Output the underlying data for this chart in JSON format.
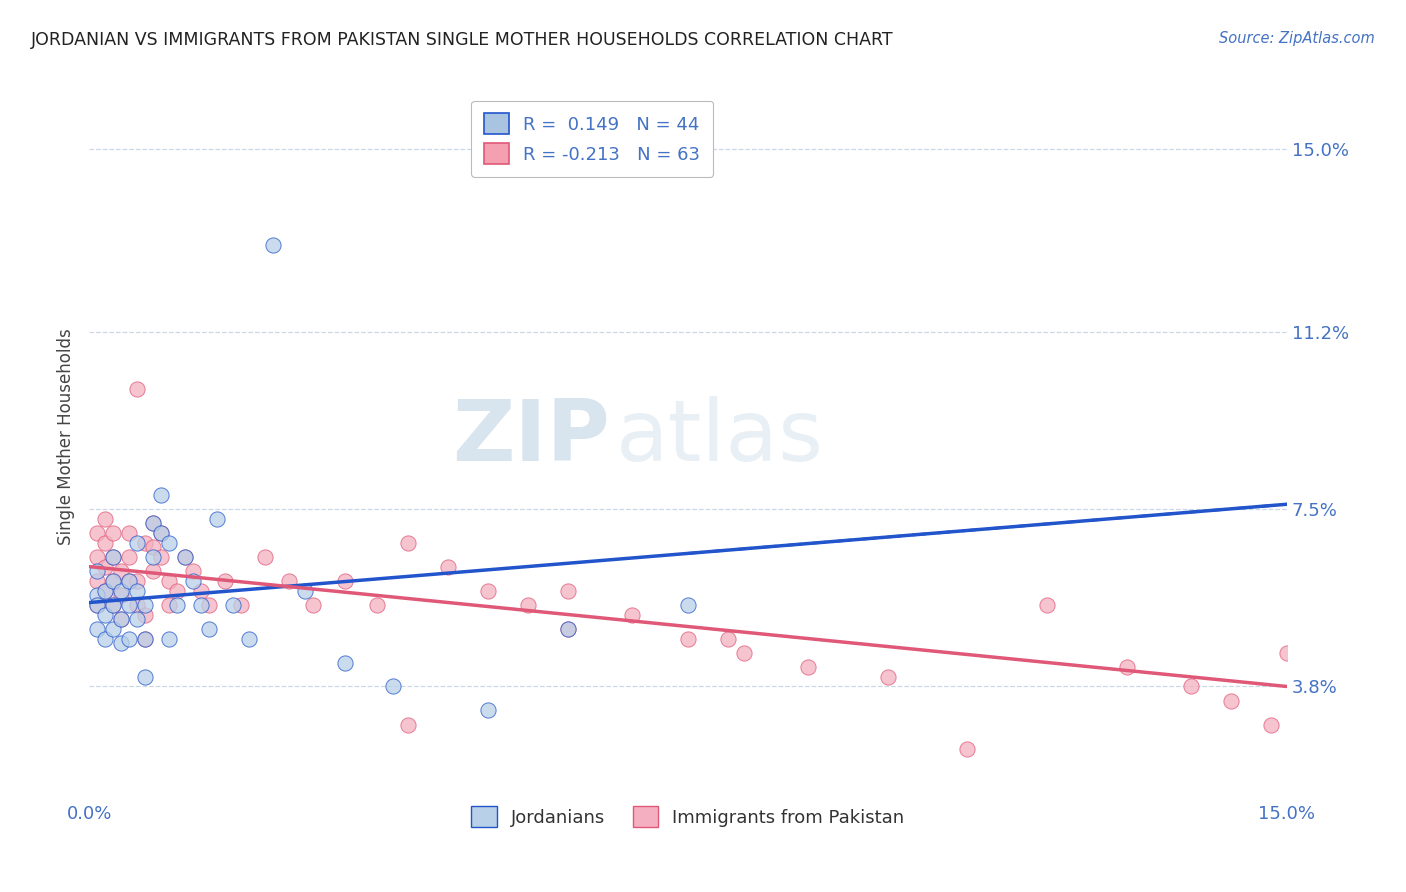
{
  "title": "JORDANIAN VS IMMIGRANTS FROM PAKISTAN SINGLE MOTHER HOUSEHOLDS CORRELATION CHART",
  "source": "Source: ZipAtlas.com",
  "ylabel": "Single Mother Households",
  "right_y_ticks": [
    0.038,
    0.075,
    0.112,
    0.15
  ],
  "right_y_tick_labels": [
    "3.8%",
    "7.5%",
    "11.2%",
    "15.0%"
  ],
  "xlim": [
    0.0,
    0.15
  ],
  "ylim": [
    0.015,
    0.165
  ],
  "legend_label_1": "R =  0.149   N = 44",
  "legend_label_2": "R = -0.213   N = 63",
  "legend_color_1": "#a8c4e0",
  "legend_color_2": "#f4a0b0",
  "watermark_zip": "ZIP",
  "watermark_atlas": "atlas",
  "background_color": "#ffffff",
  "grid_color": "#c8d8e8",
  "title_color": "#222222",
  "axis_label_color": "#4472c4",
  "scatter_color_1": "#b8d0e8",
  "scatter_color_2": "#f4b0c0",
  "line_color_1": "#2255cc",
  "line_color_2": "#e05878",
  "jordanians_x": [
    0.001,
    0.001,
    0.001,
    0.001,
    0.002,
    0.002,
    0.002,
    0.003,
    0.003,
    0.003,
    0.003,
    0.004,
    0.004,
    0.004,
    0.005,
    0.005,
    0.005,
    0.006,
    0.006,
    0.006,
    0.007,
    0.007,
    0.007,
    0.008,
    0.008,
    0.009,
    0.009,
    0.01,
    0.01,
    0.011,
    0.012,
    0.013,
    0.014,
    0.015,
    0.016,
    0.018,
    0.02,
    0.023,
    0.027,
    0.032,
    0.038,
    0.05,
    0.06,
    0.075
  ],
  "jordanians_y": [
    0.057,
    0.062,
    0.05,
    0.055,
    0.058,
    0.053,
    0.048,
    0.06,
    0.055,
    0.05,
    0.065,
    0.052,
    0.047,
    0.058,
    0.055,
    0.048,
    0.06,
    0.052,
    0.068,
    0.058,
    0.048,
    0.055,
    0.04,
    0.072,
    0.065,
    0.078,
    0.07,
    0.068,
    0.048,
    0.055,
    0.065,
    0.06,
    0.055,
    0.05,
    0.073,
    0.055,
    0.048,
    0.13,
    0.058,
    0.043,
    0.038,
    0.033,
    0.05,
    0.055
  ],
  "pakistan_x": [
    0.001,
    0.001,
    0.001,
    0.001,
    0.002,
    0.002,
    0.002,
    0.002,
    0.003,
    0.003,
    0.003,
    0.003,
    0.004,
    0.004,
    0.004,
    0.005,
    0.005,
    0.005,
    0.006,
    0.006,
    0.006,
    0.007,
    0.007,
    0.007,
    0.008,
    0.008,
    0.008,
    0.009,
    0.009,
    0.01,
    0.01,
    0.011,
    0.012,
    0.013,
    0.014,
    0.015,
    0.017,
    0.019,
    0.022,
    0.025,
    0.028,
    0.032,
    0.036,
    0.04,
    0.045,
    0.05,
    0.055,
    0.06,
    0.068,
    0.075,
    0.082,
    0.09,
    0.1,
    0.11,
    0.12,
    0.13,
    0.138,
    0.143,
    0.148,
    0.15,
    0.08,
    0.06,
    0.04
  ],
  "pakistan_y": [
    0.06,
    0.055,
    0.065,
    0.07,
    0.058,
    0.063,
    0.068,
    0.073,
    0.055,
    0.06,
    0.065,
    0.07,
    0.052,
    0.057,
    0.062,
    0.06,
    0.065,
    0.07,
    0.055,
    0.06,
    0.1,
    0.048,
    0.053,
    0.068,
    0.062,
    0.067,
    0.072,
    0.065,
    0.07,
    0.06,
    0.055,
    0.058,
    0.065,
    0.062,
    0.058,
    0.055,
    0.06,
    0.055,
    0.065,
    0.06,
    0.055,
    0.06,
    0.055,
    0.068,
    0.063,
    0.058,
    0.055,
    0.058,
    0.053,
    0.048,
    0.045,
    0.042,
    0.04,
    0.025,
    0.055,
    0.042,
    0.038,
    0.035,
    0.03,
    0.045,
    0.048,
    0.05,
    0.03
  ],
  "trend_j_x0": 0.0,
  "trend_j_y0": 0.0555,
  "trend_j_x1": 0.15,
  "trend_j_y1": 0.076,
  "trend_p_x0": 0.0,
  "trend_p_y0": 0.063,
  "trend_p_x1": 0.15,
  "trend_p_y1": 0.038,
  "trend_j_dash_x0": 0.075,
  "trend_j_dash_x1": 0.15
}
